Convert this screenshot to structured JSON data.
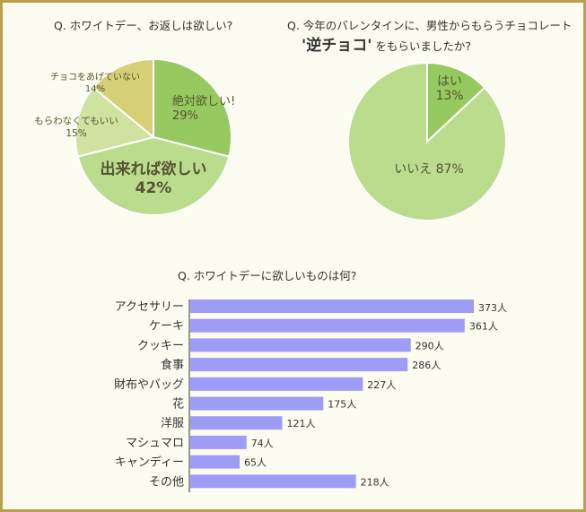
{
  "titles": {
    "q1": "Q. ホワイトデー、お返しは欲しい?",
    "q2_line1": "Q. 今年のバレンタインに、男性からもらうチョコレート",
    "q2_strong": "'逆チョコ'",
    "q2_suffix": "をもらいましたか?",
    "q3": "Q. ホワイトデーに欲しいものは何?"
  },
  "chart_data": [
    {
      "type": "pie",
      "slices": [
        {
          "label": "絶対欲しい!",
          "pct_label": "29%",
          "value": 29,
          "color": "#96c95f"
        },
        {
          "label": "出来れば欲しい",
          "pct_label": "42%",
          "value": 42,
          "color": "#badc8c"
        },
        {
          "label": "もらわなくてもいい",
          "pct_label": "15%",
          "value": 15,
          "color": "#cfe2a0"
        },
        {
          "label": "チョコをあげていない",
          "pct_label": "14%",
          "value": 14,
          "color": "#d5cf76"
        }
      ]
    },
    {
      "type": "pie",
      "slices": [
        {
          "label": "はい",
          "pct_label": "13%",
          "value": 13,
          "color": "#96c95f"
        },
        {
          "label": "いいえ 87%",
          "pct_label": "",
          "value": 87,
          "color": "#badc8c"
        }
      ]
    },
    {
      "type": "bar",
      "orientation": "horizontal",
      "categories": [
        "アクセサリー",
        "ケーキ",
        "クッキー",
        "食事",
        "財布やバッグ",
        "花",
        "洋服",
        "マシュマロ",
        "キャンディー",
        "その他"
      ],
      "values": [
        373,
        361,
        290,
        286,
        227,
        175,
        121,
        74,
        65,
        218
      ],
      "value_labels": [
        "373人",
        "361人",
        "290人",
        "286人",
        "227人",
        "175人",
        "121人",
        "74人",
        "65人",
        "218人"
      ],
      "bar_color": "#9e9cf7"
    }
  ]
}
